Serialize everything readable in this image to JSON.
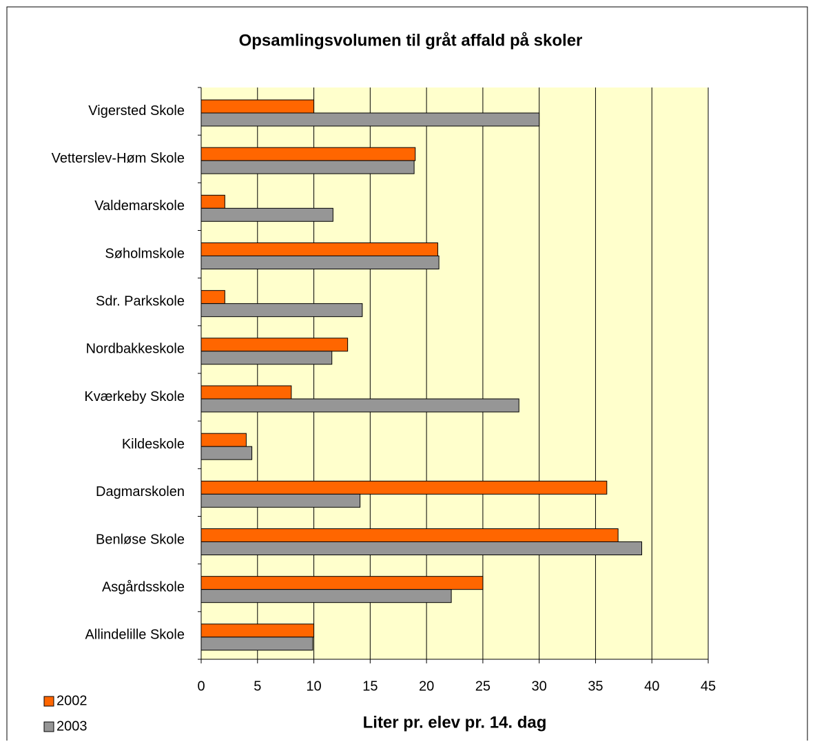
{
  "chart_data": {
    "type": "bar",
    "orientation": "horizontal",
    "title": "Opsamlingsvolumen til gråt affald på skoler",
    "x_label": "Liter pr. elev pr. 14. dag",
    "categories": [
      "Vigersted Skole",
      "Vetterslev-Høm Skole",
      "Valdemarskole",
      "Søholmskole",
      "Sdr. Parkskole",
      "Nordbakkeskole",
      "Kværkeby Skole",
      "Kildeskole",
      "Dagmarskolen",
      "Benløse Skole",
      "Asgårdsskole",
      "Allindelille Skole"
    ],
    "series": [
      {
        "name": "2002",
        "color": "#ff6600",
        "values": [
          10,
          19,
          2.1,
          21,
          2.1,
          13,
          8,
          4,
          36,
          37,
          25,
          10
        ]
      },
      {
        "name": "2003",
        "color": "#969696",
        "values": [
          30,
          18.9,
          11.7,
          21.1,
          14.3,
          11.6,
          28.2,
          4.5,
          14.1,
          39.1,
          22.2,
          9.9
        ]
      }
    ],
    "xlim": [
      0,
      45
    ],
    "xticks": [
      0,
      5,
      10,
      15,
      20,
      25,
      30,
      35,
      40,
      45
    ],
    "grid": true,
    "plot_background": "#ffffcc",
    "legend": "lower left"
  }
}
